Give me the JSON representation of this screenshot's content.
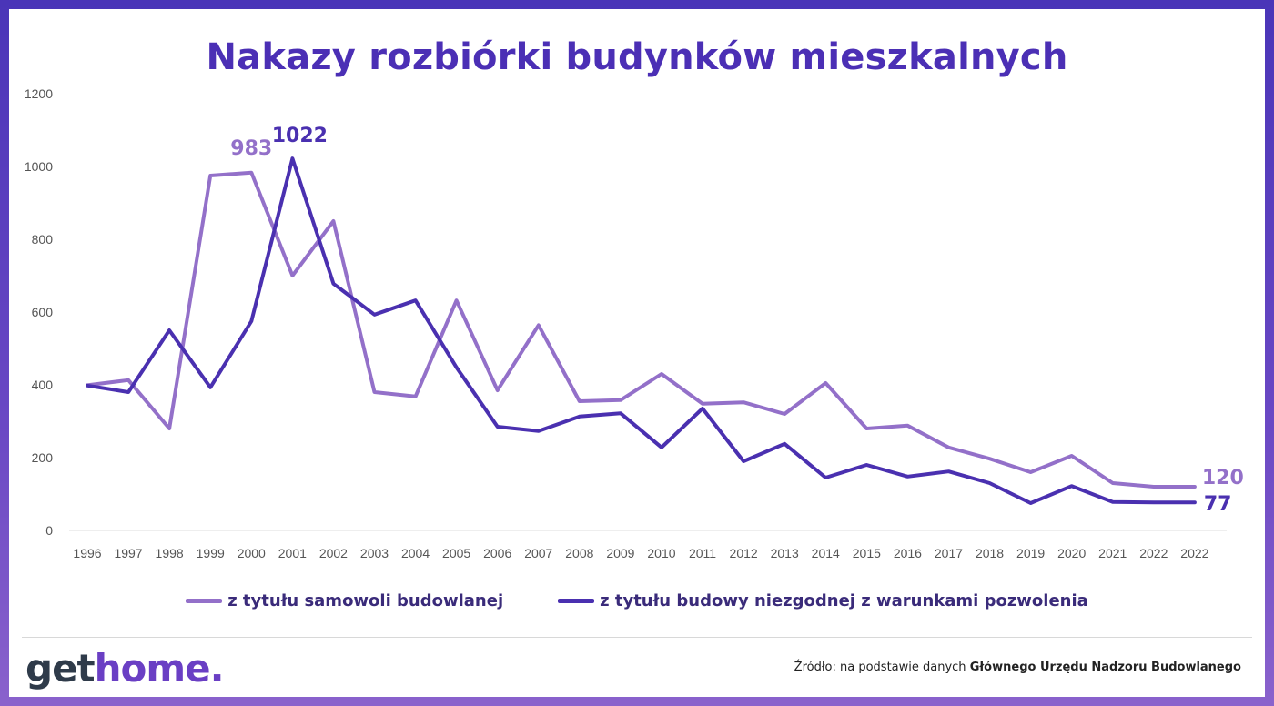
{
  "chart_data": {
    "type": "line",
    "title": "Nakazy rozbiórki budynków mieszkalnych",
    "x": [
      "1996",
      "1997",
      "1998",
      "1999",
      "2000",
      "2001",
      "2002",
      "2003",
      "2004",
      "2005",
      "2006",
      "2007",
      "2008",
      "2009",
      "2010",
      "2011",
      "2012",
      "2013",
      "2014",
      "2015",
      "2016",
      "2017",
      "2018",
      "2019",
      "2020",
      "2021",
      "2022",
      "2022"
    ],
    "series": [
      {
        "name": "z tytułu samowoli budowlanej",
        "color": "#9370c9",
        "values": [
          399,
          413,
          280,
          975,
          983,
          700,
          850,
          380,
          368,
          632,
          385,
          564,
          355,
          358,
          430,
          348,
          352,
          320,
          405,
          280,
          288,
          228,
          197,
          160,
          205,
          130,
          120,
          120
        ]
      },
      {
        "name": "z tytułu budowy niezgodnej z warunkami pozwolenia",
        "color": "#4a30b0",
        "values": [
          398,
          380,
          550,
          393,
          575,
          1022,
          678,
          593,
          632,
          448,
          285,
          273,
          313,
          322,
          228,
          335,
          190,
          238,
          145,
          180,
          148,
          162,
          130,
          75,
          122,
          78,
          77,
          77
        ]
      }
    ],
    "ylim": [
      0,
      1200
    ],
    "yticks": [
      "0",
      "200",
      "400",
      "600",
      "800",
      "1000",
      "1200"
    ],
    "grid": false,
    "legend": "bottom",
    "annotations": [
      {
        "text": "983",
        "series": 0,
        "index": 4
      },
      {
        "text": "1022",
        "series": 1,
        "index": 5
      },
      {
        "text": "120",
        "series": 0,
        "index": 27
      },
      {
        "text": "77",
        "series": 1,
        "index": 27
      }
    ]
  },
  "legend": {
    "item1": "z tytułu samowoli budowlanej",
    "item2": "z tytułu budowy niezgodnej z warunkami pozwolenia"
  },
  "logo": {
    "part1": "get",
    "part2": "home",
    "part3": "."
  },
  "source": {
    "prefix": "Źródło: na podstawie danych ",
    "bold": "Głównego Urzędu Nadzoru Budowlanego"
  }
}
